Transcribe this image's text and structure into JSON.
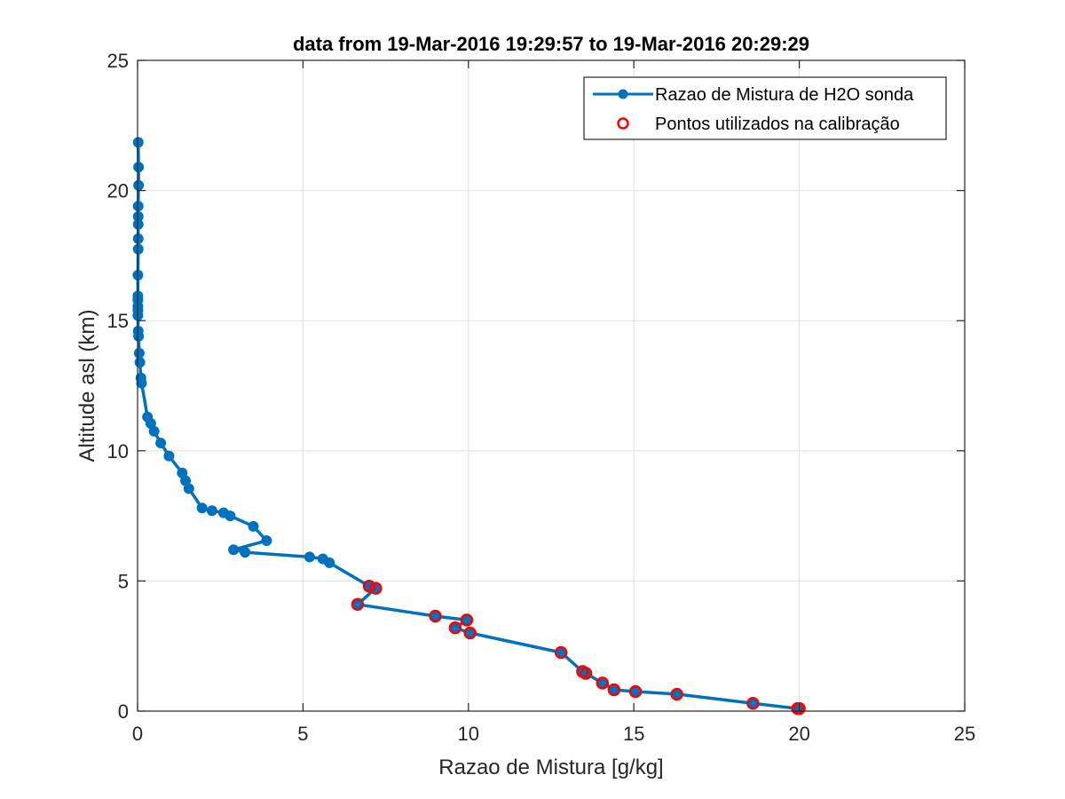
{
  "chart_data": {
    "type": "line",
    "title": "data from 19-Mar-2016 19:29:57 to 19-Mar-2016 20:29:29",
    "xlabel": "Razao de Mistura [g/kg]",
    "ylabel": "Altitude asl (km)",
    "xlim": [
      0,
      25
    ],
    "ylim": [
      0,
      25
    ],
    "xticks": [
      0,
      5,
      10,
      15,
      20,
      25
    ],
    "yticks": [
      0,
      5,
      10,
      15,
      20,
      25
    ],
    "grid": true,
    "legend_position": "top-right",
    "series": [
      {
        "name": "Razao de Mistura de H2O sonda",
        "color": "#0072BD",
        "style": "line-with-filled-circles",
        "x": [
          20.0,
          19.95,
          18.6,
          16.3,
          15.05,
          14.4,
          14.05,
          13.55,
          13.45,
          12.8,
          10.05,
          9.6,
          9.95,
          9.0,
          6.65,
          7.2,
          7.0,
          5.8,
          5.6,
          5.2,
          3.25,
          2.9,
          3.9,
          3.5,
          2.8,
          2.6,
          2.25,
          1.95,
          1.55,
          1.45,
          1.35,
          0.95,
          0.7,
          0.5,
          0.4,
          0.3,
          0.12,
          0.1,
          0.07,
          0.05,
          0.03,
          0.02,
          0.01,
          0.01,
          0.01,
          0.01,
          0.01,
          0.01,
          0.02,
          0.02,
          0.02,
          0.02,
          0.02,
          0.03,
          0.03,
          0.02
        ],
        "y": [
          0.1,
          0.1,
          0.3,
          0.65,
          0.75,
          0.82,
          1.08,
          1.45,
          1.52,
          2.25,
          3.0,
          3.2,
          3.5,
          3.65,
          4.1,
          4.72,
          4.8,
          5.7,
          5.85,
          5.92,
          6.1,
          6.2,
          6.55,
          7.1,
          7.5,
          7.62,
          7.7,
          7.8,
          8.55,
          8.85,
          9.15,
          9.8,
          10.3,
          10.75,
          11.05,
          11.3,
          12.6,
          12.8,
          13.4,
          13.75,
          14.4,
          14.6,
          15.2,
          15.4,
          15.55,
          15.8,
          15.95,
          16.75,
          17.75,
          18.15,
          18.7,
          19.0,
          19.4,
          20.2,
          20.9,
          21.85
        ]
      },
      {
        "name": "Pontos utilizados na calibração",
        "color": "#FF0000",
        "style": "open-circles",
        "x": [
          20.0,
          19.95,
          18.6,
          16.3,
          15.05,
          14.4,
          14.05,
          13.55,
          13.45,
          12.8,
          10.05,
          9.6,
          9.95,
          9.0,
          6.65,
          7.2,
          7.0
        ],
        "y": [
          0.1,
          0.1,
          0.3,
          0.65,
          0.75,
          0.82,
          1.08,
          1.45,
          1.52,
          2.25,
          3.0,
          3.2,
          3.5,
          3.65,
          4.1,
          4.72,
          4.8
        ]
      }
    ]
  }
}
